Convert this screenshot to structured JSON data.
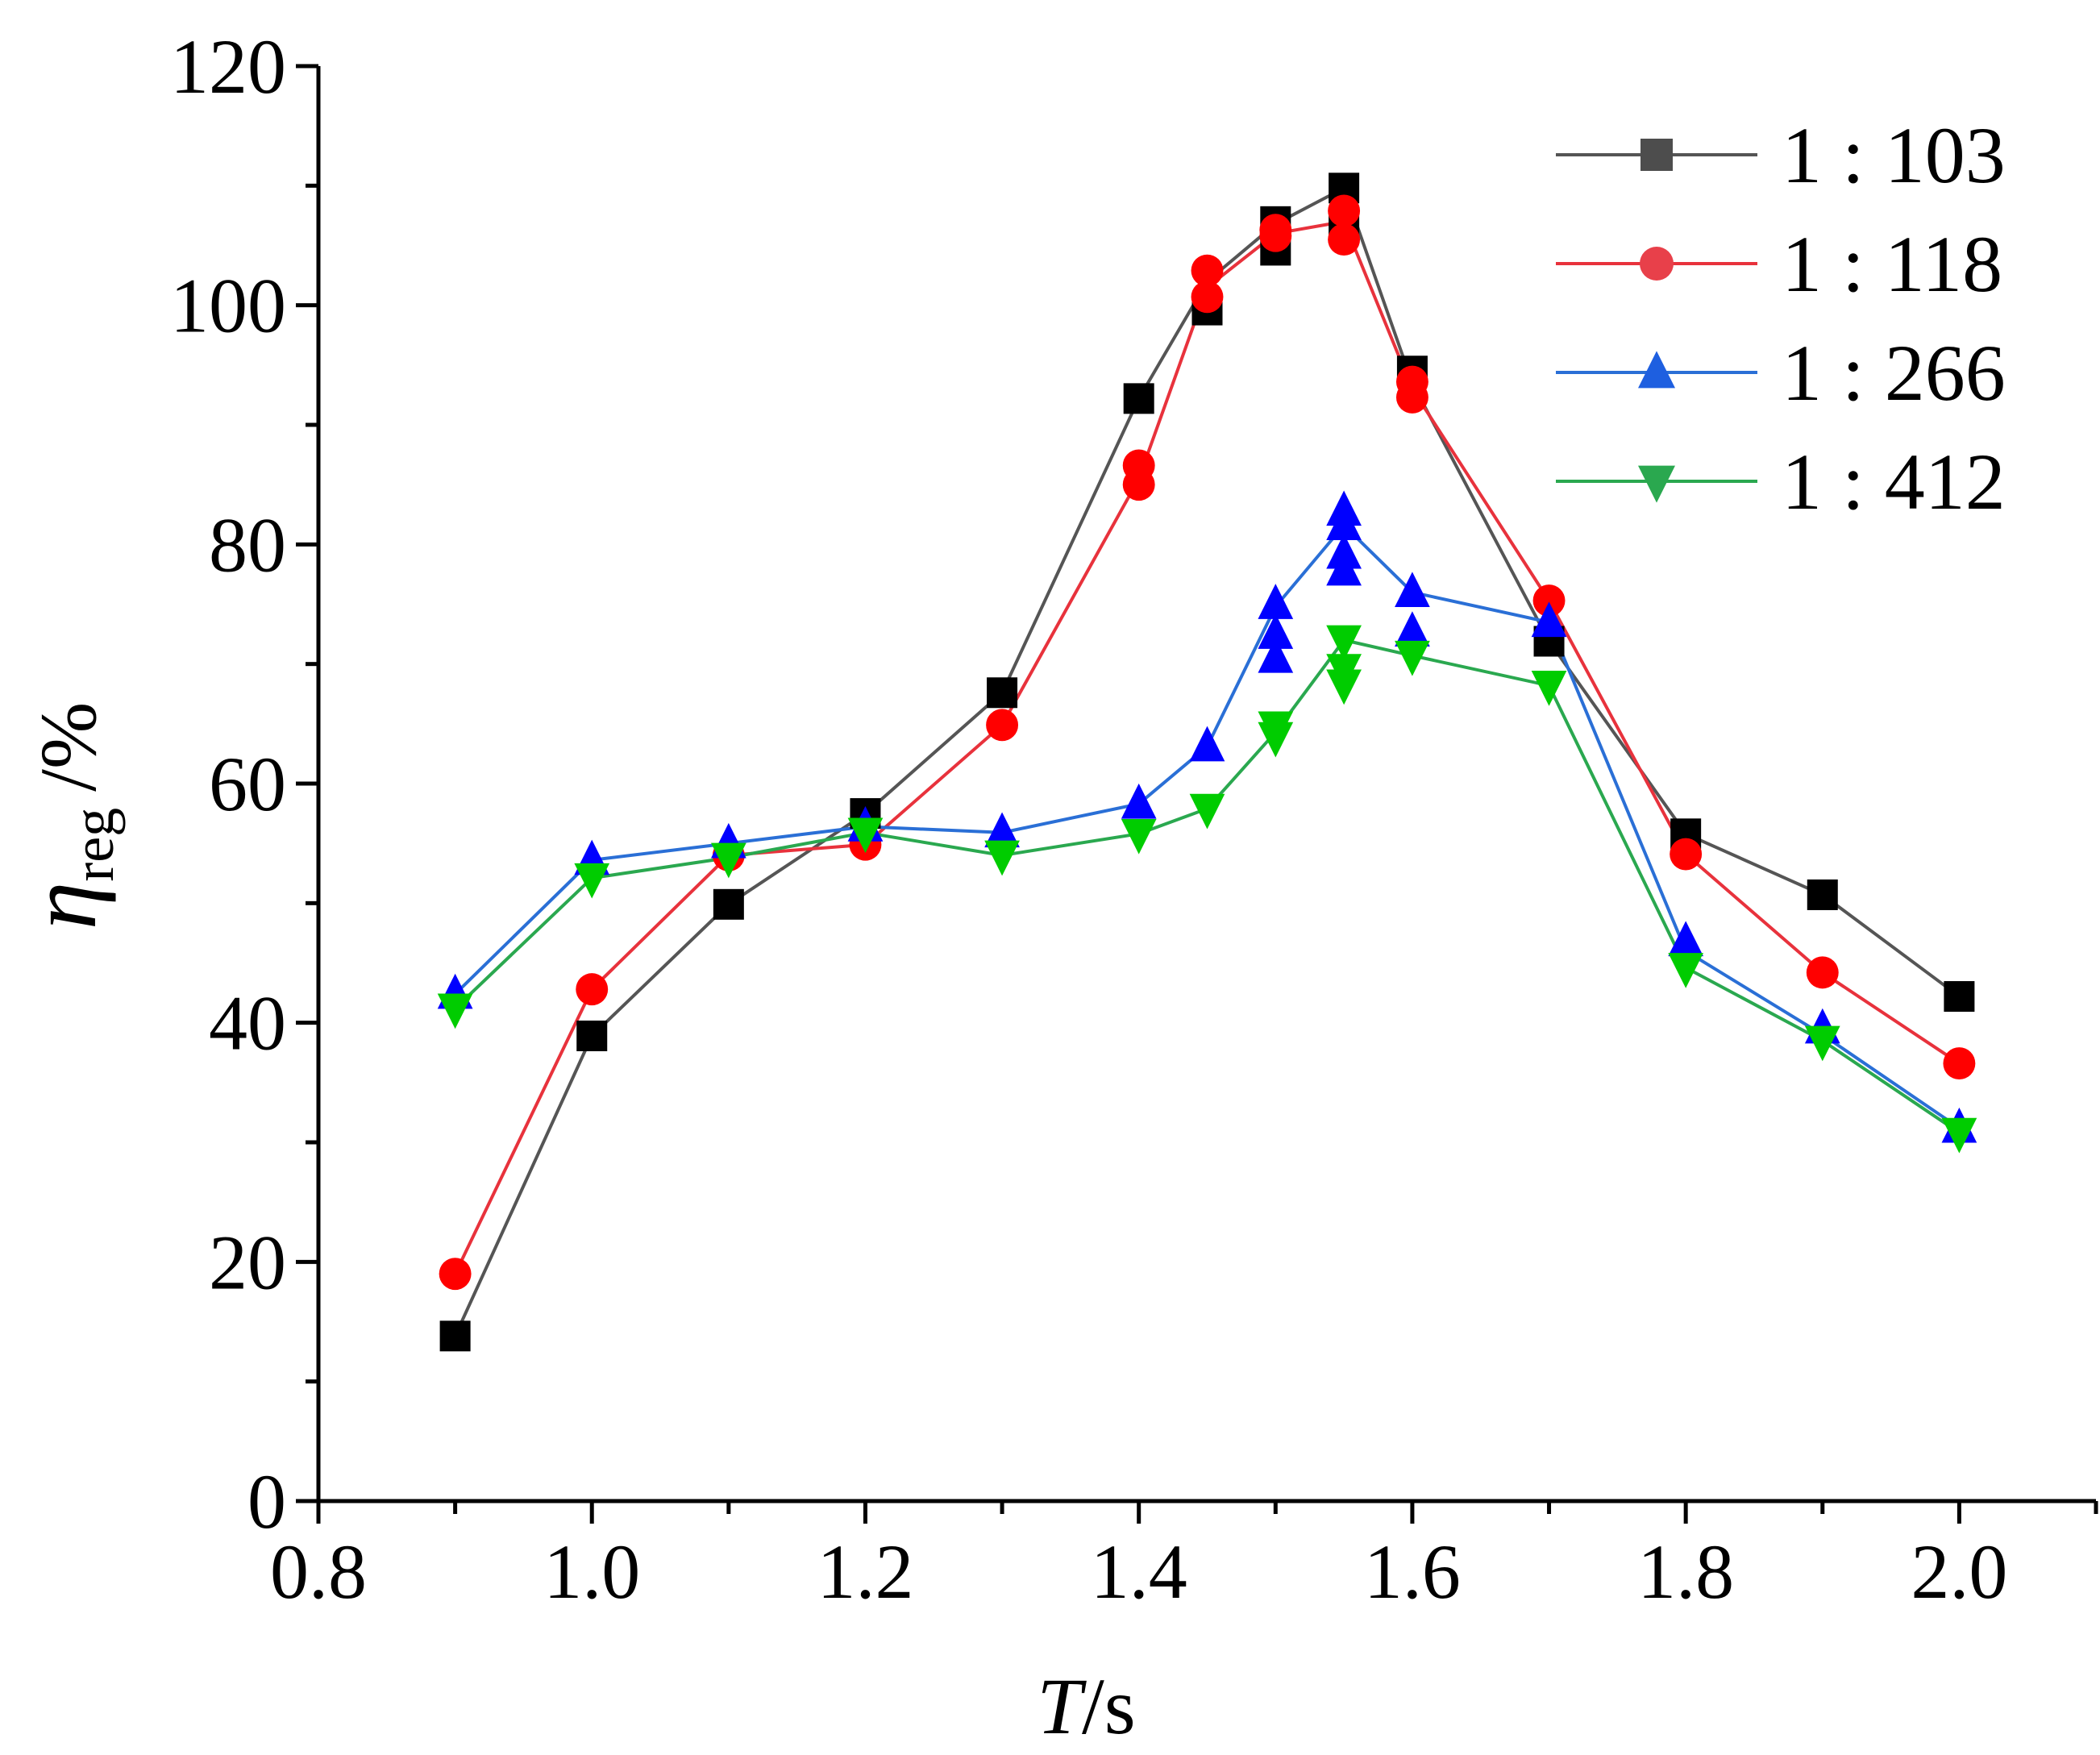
{
  "chart_data": {
    "type": "line",
    "title": "",
    "xlabel": {
      "main": "T",
      "unit": "/s"
    },
    "ylabel": {
      "main": "η",
      "sub": "reg",
      "unit": "/%"
    },
    "xlim": [
      0.8,
      2.1
    ],
    "ylim": [
      0,
      120
    ],
    "x_ticks": [
      0.8,
      1.0,
      1.2,
      1.4,
      1.6,
      1.8,
      2.0
    ],
    "x_tick_labels": [
      "0.8",
      "1.0",
      "1.2",
      "1.4",
      "1.6",
      "1.8",
      "2.0"
    ],
    "y_ticks": [
      0,
      20,
      40,
      60,
      80,
      100,
      120
    ],
    "y_tick_labels": [
      "0",
      "20",
      "40",
      "60",
      "80",
      "100",
      "120"
    ],
    "grid": false,
    "legend_position": "top-right",
    "series": [
      {
        "name": "1 : 103",
        "marker": "square",
        "line_color": "#555555",
        "marker_color": "#000000",
        "legend_marker_color": "#4d4d4d",
        "markers": [
          [
            0.9,
            13.8
          ],
          [
            1.0,
            38.9
          ],
          [
            1.1,
            49.9
          ],
          [
            1.2,
            57.5
          ],
          [
            1.3,
            67.6
          ],
          [
            1.4,
            92.2
          ],
          [
            1.45,
            99.6
          ],
          [
            1.5,
            104.6
          ],
          [
            1.5,
            107.0
          ],
          [
            1.55,
            106.5
          ],
          [
            1.55,
            109.8
          ],
          [
            1.6,
            94.5
          ],
          [
            1.7,
            71.9
          ],
          [
            1.8,
            55.8
          ],
          [
            1.9,
            50.7
          ],
          [
            2.0,
            42.2
          ]
        ],
        "line": [
          [
            0.9,
            13.8
          ],
          [
            1.0,
            38.9
          ],
          [
            1.1,
            49.9
          ],
          [
            1.2,
            57.5
          ],
          [
            1.3,
            67.6
          ],
          [
            1.4,
            92.2
          ],
          [
            1.45,
            102.0
          ],
          [
            1.5,
            106.8
          ],
          [
            1.55,
            109.8
          ],
          [
            1.6,
            93.5
          ],
          [
            1.7,
            71.9
          ],
          [
            1.8,
            55.8
          ],
          [
            1.9,
            50.7
          ],
          [
            2.0,
            42.2
          ]
        ]
      },
      {
        "name": "1 : 118",
        "marker": "circle",
        "line_color": "#e8323c",
        "marker_color": "#ff0000",
        "legend_marker_color": "#e8404a",
        "markers": [
          [
            0.9,
            19.0
          ],
          [
            1.0,
            42.8
          ],
          [
            1.1,
            54.0
          ],
          [
            1.2,
            54.9
          ],
          [
            1.3,
            64.9
          ],
          [
            1.4,
            85.0
          ],
          [
            1.4,
            86.6
          ],
          [
            1.45,
            100.7
          ],
          [
            1.45,
            102.9
          ],
          [
            1.5,
            105.8
          ],
          [
            1.5,
            106.3
          ],
          [
            1.55,
            105.5
          ],
          [
            1.55,
            107.9
          ],
          [
            1.6,
            92.3
          ],
          [
            1.6,
            93.6
          ],
          [
            1.7,
            75.3
          ],
          [
            1.8,
            54.1
          ],
          [
            1.9,
            44.2
          ],
          [
            2.0,
            36.6
          ]
        ],
        "line": [
          [
            0.9,
            19.0
          ],
          [
            1.0,
            42.8
          ],
          [
            1.1,
            54.0
          ],
          [
            1.2,
            54.9
          ],
          [
            1.3,
            64.9
          ],
          [
            1.4,
            85.5
          ],
          [
            1.45,
            101.5
          ],
          [
            1.5,
            106.0
          ],
          [
            1.55,
            107.0
          ],
          [
            1.6,
            93.0
          ],
          [
            1.7,
            75.3
          ],
          [
            1.8,
            54.1
          ],
          [
            1.9,
            44.2
          ],
          [
            2.0,
            36.6
          ]
        ]
      },
      {
        "name": "1 : 266",
        "marker": "triangle-up",
        "line_color": "#2a6fd6",
        "marker_color": "#0000ff",
        "legend_marker_color": "#1e5fe0",
        "markers": [
          [
            0.9,
            42.4
          ],
          [
            1.0,
            53.6
          ],
          [
            1.1,
            55.0
          ],
          [
            1.2,
            56.4
          ],
          [
            1.3,
            55.9
          ],
          [
            1.4,
            58.3
          ],
          [
            1.45,
            63.1
          ],
          [
            1.5,
            70.5
          ],
          [
            1.5,
            72.5
          ],
          [
            1.5,
            75.0
          ],
          [
            1.55,
            77.8
          ],
          [
            1.55,
            79.2
          ],
          [
            1.55,
            81.6
          ],
          [
            1.55,
            82.8
          ],
          [
            1.6,
            72.7
          ],
          [
            1.6,
            76.0
          ],
          [
            1.7,
            73.5
          ],
          [
            1.8,
            46.8
          ],
          [
            1.9,
            39.5
          ],
          [
            2.0,
            31.2
          ]
        ],
        "line": [
          [
            0.9,
            42.4
          ],
          [
            1.0,
            53.6
          ],
          [
            1.1,
            55.0
          ],
          [
            1.2,
            56.4
          ],
          [
            1.3,
            55.9
          ],
          [
            1.4,
            58.3
          ],
          [
            1.45,
            63.1
          ],
          [
            1.5,
            74.8
          ],
          [
            1.55,
            81.6
          ],
          [
            1.6,
            76.0
          ],
          [
            1.7,
            73.5
          ],
          [
            1.8,
            46.0
          ],
          [
            1.9,
            39.0
          ],
          [
            2.0,
            31.2
          ]
        ]
      },
      {
        "name": "1 : 412",
        "marker": "triangle-down",
        "line_color": "#2aa84f",
        "marker_color": "#00cc00",
        "legend_marker_color": "#2aa84f",
        "markers": [
          [
            0.9,
            41.2
          ],
          [
            1.0,
            52.1
          ],
          [
            1.1,
            53.8
          ],
          [
            1.2,
            55.9
          ],
          [
            1.3,
            54.0
          ],
          [
            1.4,
            55.8
          ],
          [
            1.45,
            57.9
          ],
          [
            1.5,
            63.9
          ],
          [
            1.5,
            64.8
          ],
          [
            1.55,
            68.3
          ],
          [
            1.55,
            69.6
          ],
          [
            1.55,
            72.0
          ],
          [
            1.6,
            70.7
          ],
          [
            1.7,
            68.2
          ],
          [
            1.8,
            44.6
          ],
          [
            1.9,
            38.5
          ],
          [
            2.0,
            30.8
          ]
        ],
        "line": [
          [
            0.9,
            41.2
          ],
          [
            1.0,
            52.1
          ],
          [
            1.1,
            53.8
          ],
          [
            1.2,
            55.9
          ],
          [
            1.3,
            54.0
          ],
          [
            1.4,
            55.8
          ],
          [
            1.45,
            57.9
          ],
          [
            1.5,
            64.3
          ],
          [
            1.55,
            72.0
          ],
          [
            1.6,
            70.7
          ],
          [
            1.7,
            68.2
          ],
          [
            1.8,
            44.6
          ],
          [
            1.9,
            38.5
          ],
          [
            2.0,
            30.8
          ]
        ]
      }
    ]
  }
}
